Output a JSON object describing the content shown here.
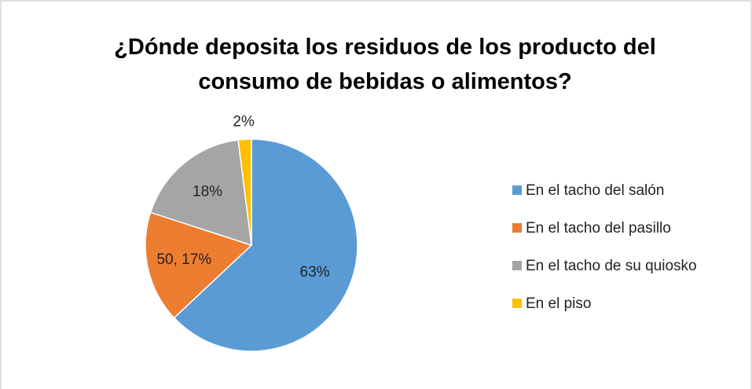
{
  "chart_data": {
    "type": "pie",
    "title": "¿Dónde deposita los residuos de los producto del consumo de bebidas o alimentos?",
    "categories": [
      "En el tacho del salón",
      "En el tacho del pasillo",
      "En el tacho de su quiosko",
      "En el piso"
    ],
    "values": [
      63,
      17,
      18,
      2
    ],
    "value_labels": [
      "63%",
      "50, 17%",
      "18%",
      "2%"
    ],
    "colors": [
      "#5b9bd5",
      "#ed7d31",
      "#a5a5a5",
      "#ffc000"
    ],
    "legend": "right"
  }
}
